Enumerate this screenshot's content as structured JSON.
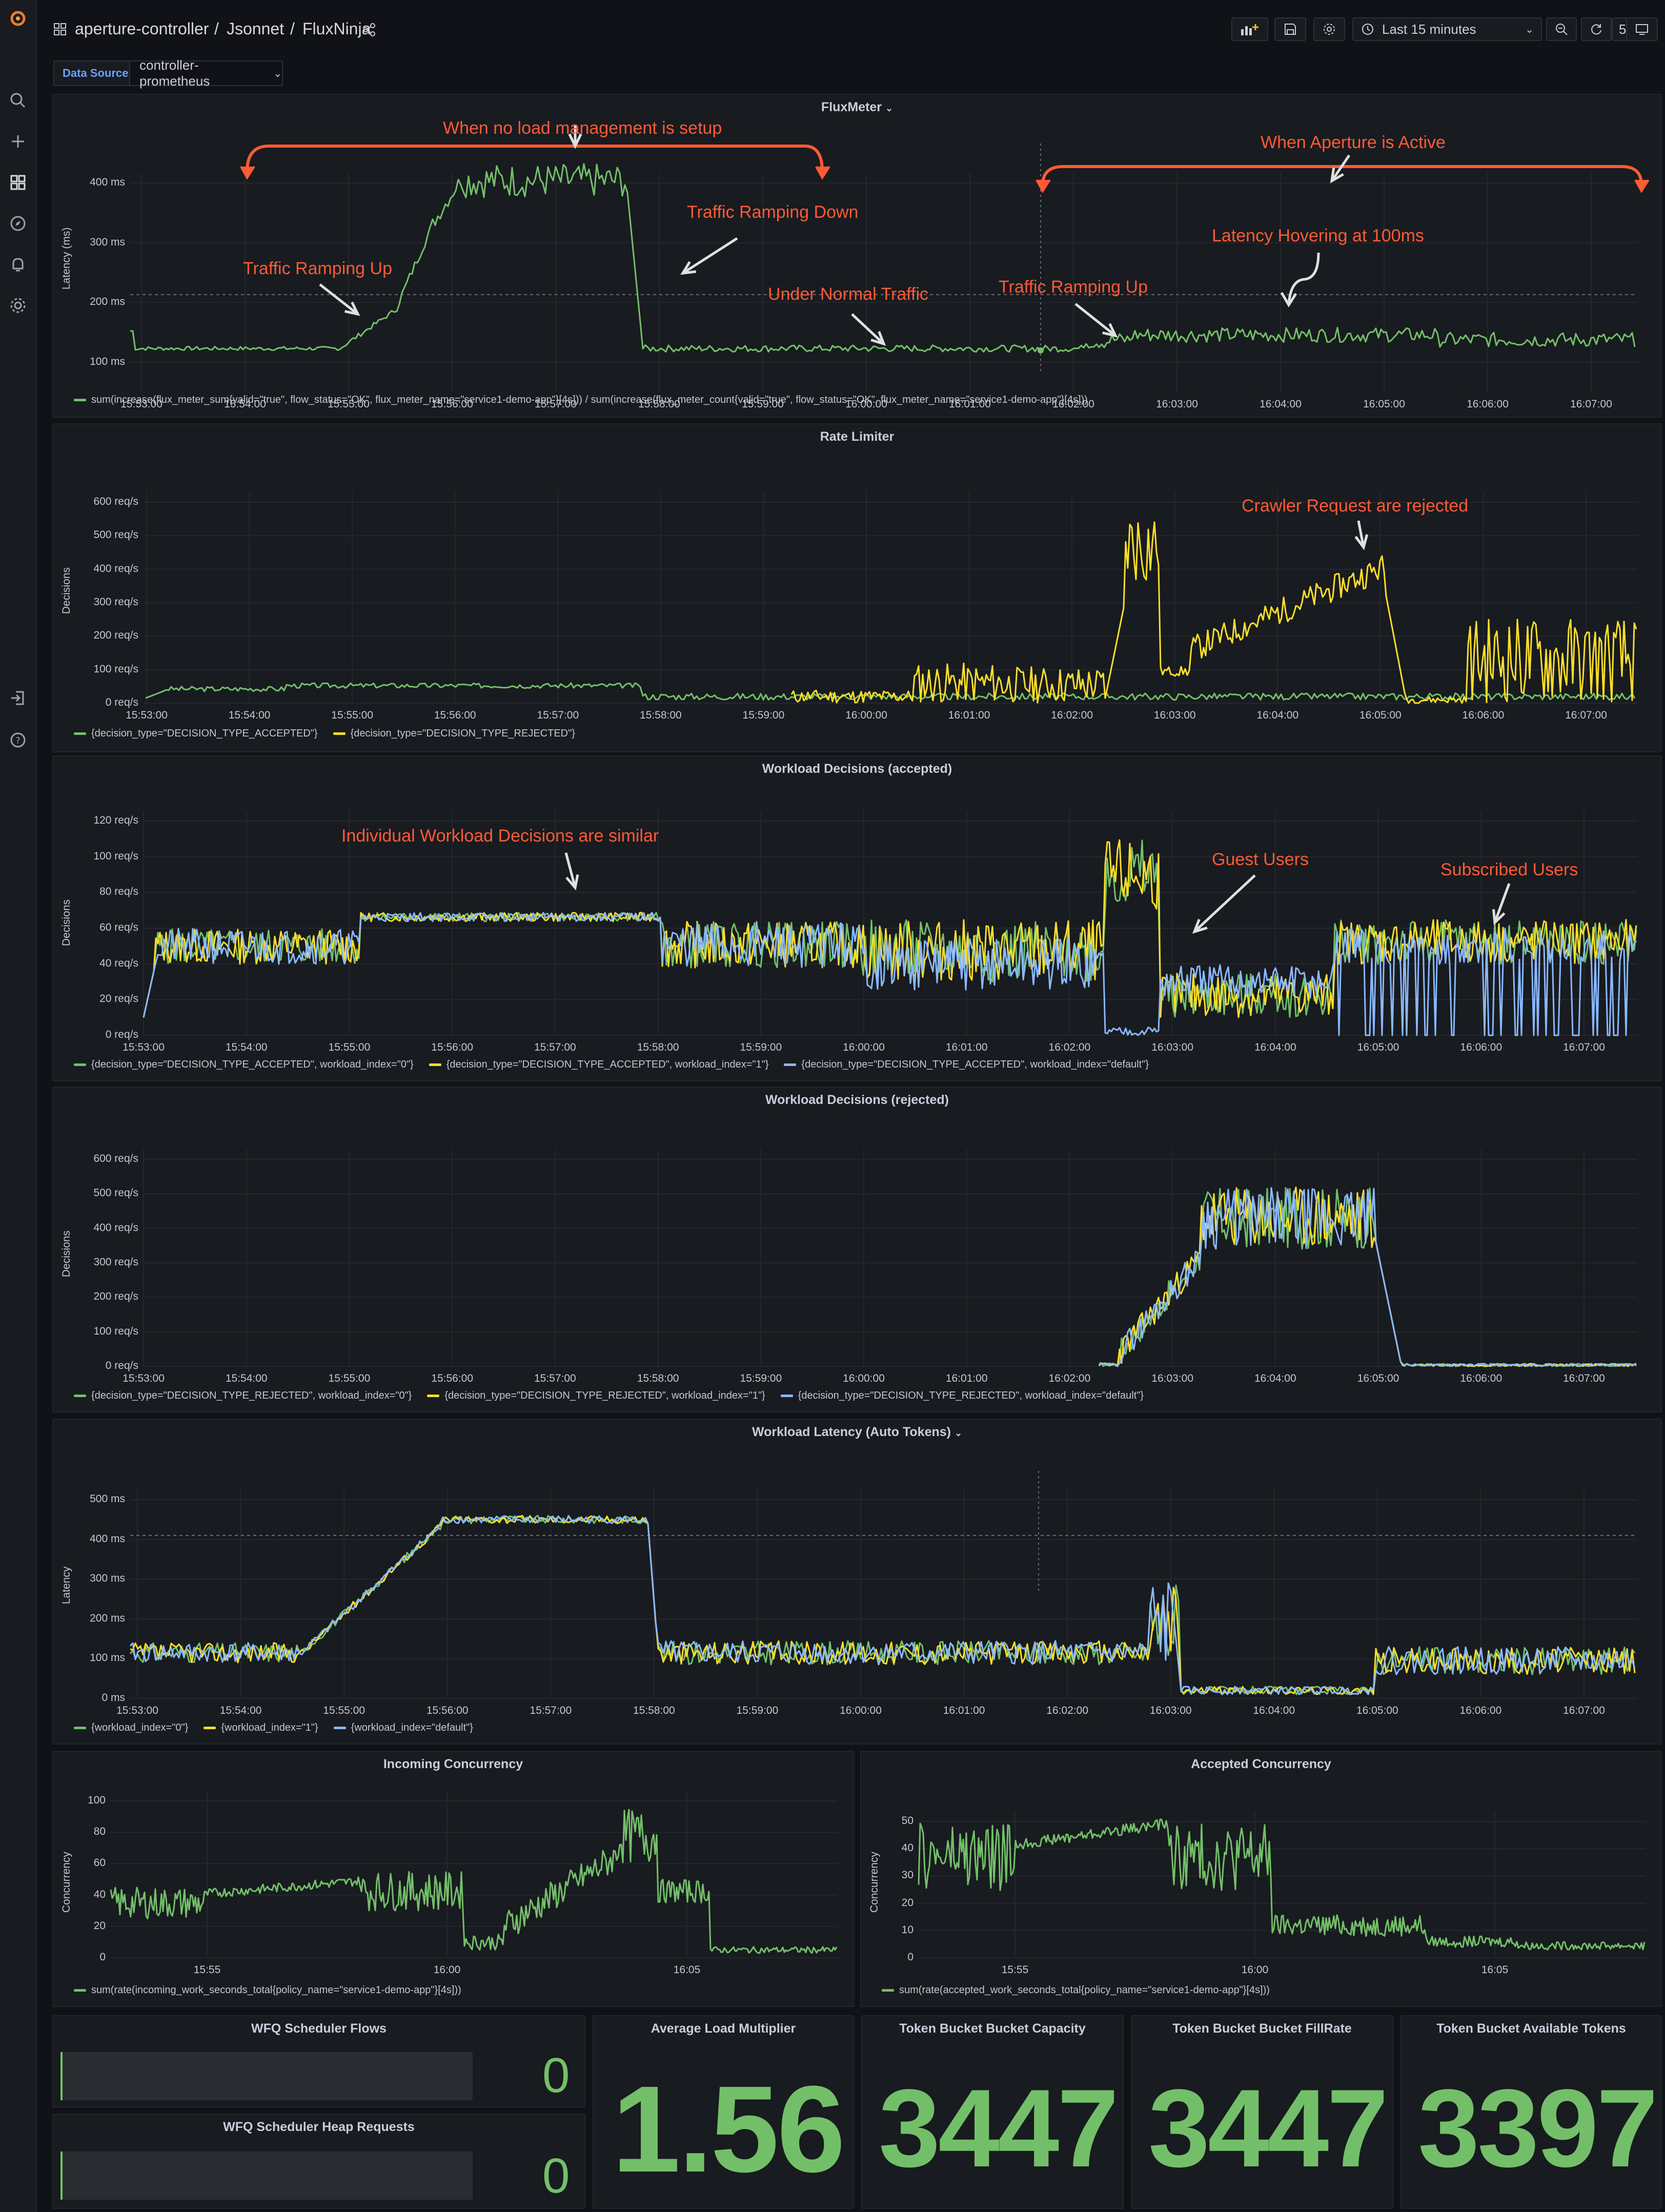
{
  "header": {
    "breadcrumb_folder": "aperture-controller",
    "breadcrumb_sep1": "/",
    "breadcrumb_folder2": "Jsonnet",
    "breadcrumb_sep2": "/",
    "breadcrumb_dashboard": "FluxNinja",
    "time_range": "Last 15 minutes",
    "refresh": "5s",
    "icons": [
      "grafana-logo",
      "share-icon",
      "add-panel-icon",
      "save-icon",
      "settings-icon",
      "clock-icon",
      "zoom-out-icon",
      "refresh-icon",
      "tv-icon"
    ]
  },
  "sidebar": {
    "icons": [
      "search-icon",
      "plus-icon",
      "dashboards-icon",
      "explore-icon",
      "alert-icon",
      "gear-icon",
      "signin-icon",
      "help-icon"
    ]
  },
  "variables": {
    "label": "Data Source",
    "value": "controller-prometheus"
  },
  "colors": {
    "green": "#73bf69",
    "yellow": "#fade2a",
    "blue": "#8ab8ff",
    "annotation": "#ff5a36",
    "arrow": "#e0e0e0"
  },
  "panels": {
    "fluxmeter": {
      "title": "FluxMeter",
      "ylabel": "Latency (ms)",
      "yticks": [
        "400 ms",
        "300 ms",
        "200 ms",
        "100 ms"
      ],
      "xticks": [
        "15:53:00",
        "15:54:00",
        "15:55:00",
        "15:56:00",
        "15:57:00",
        "15:58:00",
        "15:59:00",
        "16:00:00",
        "16:01:00",
        "16:02:00",
        "16:03:00",
        "16:04:00",
        "16:05:00",
        "16:06:00",
        "16:07:00"
      ],
      "legend": "sum(increase(flux_meter_sum{valid=\"true\", flow_status=\"OK\", flux_meter_name=\"service1-demo-app\"}[4s])) / sum(increase(flux_meter_count{valid=\"true\", flow_status=\"OK\", flux_meter_name=\"service1-demo-app\"}[4s]))",
      "annotations": {
        "no_load": "When no load management is setup",
        "aperture_active": "When Aperture is Active",
        "ramping_down": "Traffic Ramping Down",
        "ramping_up_1": "Traffic Ramping Up",
        "normal": "Under Normal Traffic",
        "ramping_up_2": "Traffic Ramping Up",
        "hovering": "Latency Hovering at 100ms"
      }
    },
    "rate_limiter": {
      "title": "Rate Limiter",
      "ylabel": "Decisions",
      "yticks": [
        "600 req/s",
        "500 req/s",
        "400 req/s",
        "300 req/s",
        "200 req/s",
        "100 req/s",
        "0 req/s"
      ],
      "xticks": [
        "15:53:00",
        "15:54:00",
        "15:55:00",
        "15:56:00",
        "15:57:00",
        "15:58:00",
        "15:59:00",
        "16:00:00",
        "16:01:00",
        "16:02:00",
        "16:03:00",
        "16:04:00",
        "16:05:00",
        "16:06:00",
        "16:07:00"
      ],
      "legend": [
        "{decision_type=\"DECISION_TYPE_ACCEPTED\"}",
        "{decision_type=\"DECISION_TYPE_REJECTED\"}"
      ],
      "annotation": "Crawler Request are rejected"
    },
    "wd_accepted": {
      "title": "Workload Decisions (accepted)",
      "ylabel": "Decisions",
      "yticks": [
        "120 req/s",
        "100 req/s",
        "80 req/s",
        "60 req/s",
        "40 req/s",
        "20 req/s",
        "0 req/s"
      ],
      "xticks": [
        "15:53:00",
        "15:54:00",
        "15:55:00",
        "15:56:00",
        "15:57:00",
        "15:58:00",
        "15:59:00",
        "16:00:00",
        "16:01:00",
        "16:02:00",
        "16:03:00",
        "16:04:00",
        "16:05:00",
        "16:06:00",
        "16:07:00"
      ],
      "legend": [
        "{decision_type=\"DECISION_TYPE_ACCEPTED\", workload_index=\"0\"}",
        "{decision_type=\"DECISION_TYPE_ACCEPTED\", workload_index=\"1\"}",
        "{decision_type=\"DECISION_TYPE_ACCEPTED\", workload_index=\"default\"}"
      ],
      "annotations": {
        "similar": "Individual Workload Decisions are similar",
        "guest": "Guest Users",
        "subscribed": "Subscribed Users"
      }
    },
    "wd_rejected": {
      "title": "Workload Decisions (rejected)",
      "ylabel": "Decisions",
      "yticks": [
        "600 req/s",
        "500 req/s",
        "400 req/s",
        "300 req/s",
        "200 req/s",
        "100 req/s",
        "0 req/s"
      ],
      "xticks": [
        "15:53:00",
        "15:54:00",
        "15:55:00",
        "15:56:00",
        "15:57:00",
        "15:58:00",
        "15:59:00",
        "16:00:00",
        "16:01:00",
        "16:02:00",
        "16:03:00",
        "16:04:00",
        "16:05:00",
        "16:06:00",
        "16:07:00"
      ],
      "legend": [
        "{decision_type=\"DECISION_TYPE_REJECTED\", workload_index=\"0\"}",
        "{decision_type=\"DECISION_TYPE_REJECTED\", workload_index=\"1\"}",
        "{decision_type=\"DECISION_TYPE_REJECTED\", workload_index=\"default\"}"
      ]
    },
    "wl_latency": {
      "title": "Workload Latency (Auto Tokens)",
      "ylabel": "Latency",
      "yticks": [
        "500 ms",
        "400 ms",
        "300 ms",
        "200 ms",
        "100 ms",
        "0 ms"
      ],
      "xticks": [
        "15:53:00",
        "15:54:00",
        "15:55:00",
        "15:56:00",
        "15:57:00",
        "15:58:00",
        "15:59:00",
        "16:00:00",
        "16:01:00",
        "16:02:00",
        "16:03:00",
        "16:04:00",
        "16:05:00",
        "16:06:00",
        "16:07:00"
      ],
      "legend": [
        "{workload_index=\"0\"}",
        "{workload_index=\"1\"}",
        "{workload_index=\"default\"}"
      ]
    },
    "incoming": {
      "title": "Incoming Concurrency",
      "ylabel": "Concurrency",
      "yticks": [
        "100",
        "80",
        "60",
        "40",
        "20",
        "0"
      ],
      "xticks": [
        "15:55",
        "16:00",
        "16:05"
      ],
      "legend": "sum(rate(incoming_work_seconds_total{policy_name=\"service1-demo-app\"}[4s]))"
    },
    "accepted": {
      "title": "Accepted Concurrency",
      "ylabel": "Concurrency",
      "yticks": [
        "50",
        "40",
        "30",
        "20",
        "10",
        "0"
      ],
      "xticks": [
        "15:55",
        "16:00",
        "16:05"
      ],
      "legend": "sum(rate(accepted_work_seconds_total{policy_name=\"service1-demo-app\"}[4s]))"
    },
    "stats": {
      "wfq_flows": {
        "title": "WFQ Scheduler Flows",
        "value": "0"
      },
      "wfq_heap": {
        "title": "WFQ Scheduler Heap Requests",
        "value": "0"
      },
      "avg_load": {
        "title": "Average Load Multiplier",
        "value": "1.56"
      },
      "tb_capacity": {
        "title": "Token Bucket Bucket Capacity",
        "value": "3447"
      },
      "tb_fillrate": {
        "title": "Token Bucket Bucket FillRate",
        "value": "3447"
      },
      "tb_available": {
        "title": "Token Bucket Available Tokens",
        "value": "3397"
      }
    }
  }
}
